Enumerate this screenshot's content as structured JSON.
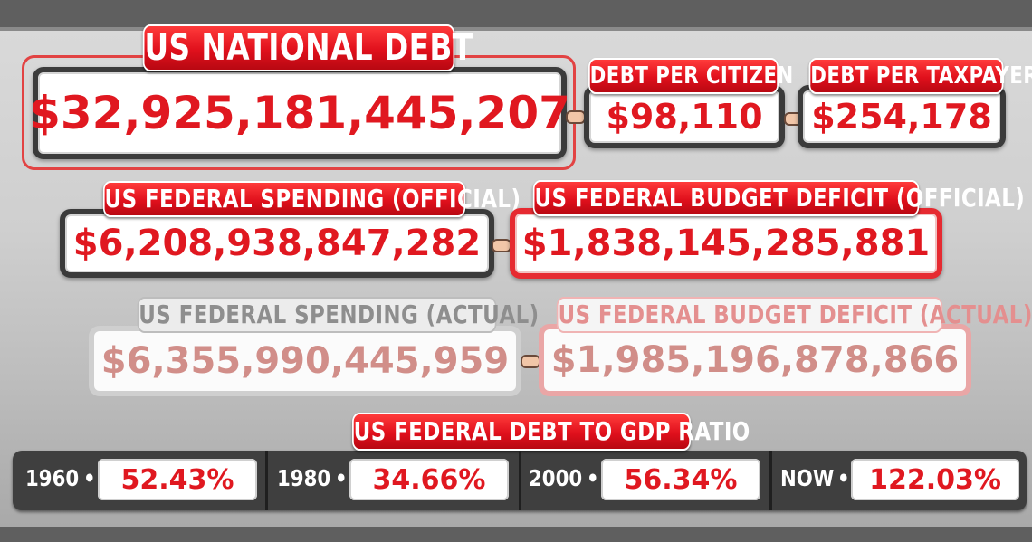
{
  "national_debt": {
    "label": "US NATIONAL DEBT",
    "value": "$32,925,181,445,207"
  },
  "debt_per_citizen": {
    "label": "DEBT PER CITIZEN",
    "value": "$98,110"
  },
  "debt_per_taxpayer": {
    "label": "DEBT PER TAXPAYER",
    "value": "$254,178"
  },
  "spending_official": {
    "label": "US FEDERAL SPENDING (OFFICIAL)",
    "value": "$6,208,938,847,282"
  },
  "deficit_official": {
    "label": "US FEDERAL BUDGET DEFICIT (OFFICIAL)",
    "value": "$1,838,145,285,881"
  },
  "spending_actual": {
    "label": "US FEDERAL SPENDING (ACTUAL)",
    "value": "$6,355,990,445,959"
  },
  "deficit_actual": {
    "label": "US FEDERAL BUDGET DEFICIT (ACTUAL)",
    "value": "$1,985,196,878,866"
  },
  "debt_to_gdp": {
    "label": "US FEDERAL DEBT TO GDP RATIO",
    "items": [
      {
        "year": "1960",
        "value": "52.43%"
      },
      {
        "year": "1980",
        "value": "34.66%"
      },
      {
        "year": "2000",
        "value": "56.34%"
      },
      {
        "year": "NOW",
        "value": "122.03%"
      }
    ]
  },
  "colors": {
    "accent_red": "#e01820",
    "frame_dark": "#3b3b3b",
    "background": "#5f5f5f"
  }
}
